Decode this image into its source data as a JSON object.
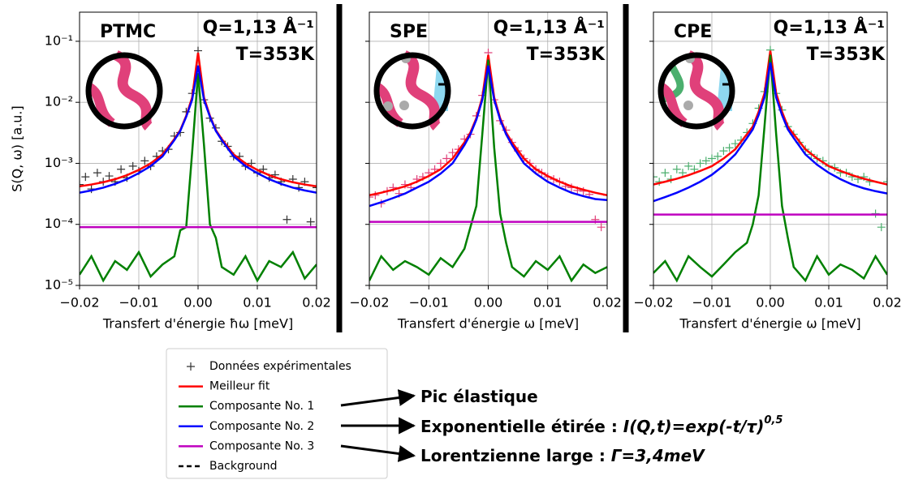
{
  "chart_data": [
    {
      "type": "line",
      "log_y": true,
      "grid": true,
      "sample": "PTMC",
      "sample_color": "#444444",
      "q_label": "Q=1,13 Å⁻¹",
      "t_label": "T=353K",
      "t_color": "#e0604a",
      "xlabel": "Transfert d'énergie ħω [meV]",
      "ylabel": "S(Q, ω) [a.u.]",
      "xlim": [
        -0.02,
        0.02
      ],
      "ylim": [
        1e-05,
        0.3
      ],
      "xticks": [
        {
          "value": -0.02,
          "label": "−0.02"
        },
        {
          "value": -0.01,
          "label": "−0.01"
        },
        {
          "value": 0,
          "label": "0.00"
        },
        0.01,
        0.02
      ],
      "yticks": [
        {
          "value": 1e-05,
          "label": "10⁻⁵"
        },
        {
          "value": 0.0001,
          "label": "10⁻⁴"
        },
        {
          "value": 0.001,
          "label": "10⁻³"
        },
        {
          "value": 0.01,
          "label": "10⁻²"
        },
        {
          "value": 0.1,
          "label": "10⁻¹"
        }
      ],
      "x": [
        -0.02,
        -0.018,
        -0.016,
        -0.014,
        -0.012,
        -0.01,
        -0.008,
        -0.006,
        -0.004,
        -0.003,
        -0.002,
        -0.001,
        0,
        0.001,
        0.002,
        0.003,
        0.004,
        0.006,
        0.008,
        0.01,
        0.012,
        0.014,
        0.016,
        0.018,
        0.02
      ],
      "series": [
        {
          "color": "#333333",
          "style": "+",
          "x": [
            -0.02,
            -0.019,
            -0.018,
            -0.017,
            -0.016,
            -0.015,
            -0.014,
            -0.013,
            -0.012,
            -0.011,
            -0.01,
            -0.009,
            -0.008,
            -0.007,
            -0.006,
            -0.005,
            -0.004,
            -0.003,
            -0.002,
            -0.001,
            0,
            0.001,
            0.002,
            0.003,
            0.004,
            0.005,
            0.006,
            0.007,
            0.008,
            0.009,
            0.01,
            0.011,
            0.012,
            0.013,
            0.014,
            0.015,
            0.016,
            0.017,
            0.018,
            0.019,
            0.02
          ],
          "values": [
            0.00045,
            0.0006,
            0.00038,
            0.0007,
            0.0005,
            0.00062,
            0.0005,
            0.0008,
            0.00058,
            0.0009,
            0.00075,
            0.0011,
            0.0009,
            0.0013,
            0.0016,
            0.0017,
            0.0028,
            0.0032,
            0.007,
            0.014,
            0.07,
            0.011,
            0.0055,
            0.0038,
            0.0023,
            0.0019,
            0.0013,
            0.0013,
            0.0009,
            0.001,
            0.0007,
            0.0008,
            0.00058,
            0.00065,
            0.0005,
            0.00012,
            0.00055,
            0.0004,
            0.0005,
            0.00011,
            0.0004
          ]
        },
        {
          "color": "#ff0000",
          "style": "solid",
          "values": [
            0.00042,
            0.00045,
            0.00049,
            0.00055,
            0.00064,
            0.00078,
            0.001,
            0.0014,
            0.0025,
            0.0035,
            0.006,
            0.012,
            0.065,
            0.012,
            0.006,
            0.0035,
            0.0025,
            0.0014,
            0.001,
            0.00078,
            0.00064,
            0.00055,
            0.00049,
            0.00045,
            0.00042
          ]
        },
        {
          "color": "#008000",
          "style": "solid",
          "values": [
            1.5e-05,
            3e-05,
            1.2e-05,
            2.5e-05,
            1.8e-05,
            3.5e-05,
            1.4e-05,
            2.2e-05,
            3e-05,
            8e-05,
            9e-05,
            0.0015,
            0.03,
            0.002,
            0.0001,
            6e-05,
            2e-05,
            1.5e-05,
            3e-05,
            1.2e-05,
            2.5e-05,
            2e-05,
            3.5e-05,
            1.3e-05,
            2.2e-05
          ]
        },
        {
          "color": "#0000ff",
          "style": "solid",
          "values": [
            0.00033,
            0.00036,
            0.0004,
            0.00046,
            0.00055,
            0.00069,
            0.0009,
            0.0013,
            0.0024,
            0.0034,
            0.0058,
            0.011,
            0.04,
            0.011,
            0.0058,
            0.0034,
            0.0024,
            0.0013,
            0.0009,
            0.00069,
            0.00055,
            0.00046,
            0.0004,
            0.00036,
            0.00033
          ]
        },
        {
          "color": "#bf00bf",
          "style": "solid",
          "x": [
            -0.02,
            0.02
          ],
          "values": [
            9e-05,
            9e-05
          ]
        }
      ]
    },
    {
      "type": "line",
      "log_y": true,
      "grid": true,
      "sample": "SPE",
      "sample_color": "#e0407a",
      "q_label": "Q=1,13 Å⁻¹",
      "t_label": "T=353K",
      "t_color": "#e0604a",
      "xlabel": "Transfert d'énergie ω [meV]",
      "xlim": [
        -0.02,
        0.02
      ],
      "ylim": [
        1e-05,
        0.3
      ],
      "xticks": [
        {
          "value": -0.02,
          "label": "−0.02"
        },
        {
          "value": -0.01,
          "label": "−0.01"
        },
        {
          "value": 0,
          "label": "0.00"
        },
        0.01,
        0.02
      ],
      "yticks": [
        1e-05,
        0.0001,
        0.001,
        0.01,
        0.1
      ],
      "x": [
        -0.02,
        -0.018,
        -0.016,
        -0.014,
        -0.012,
        -0.01,
        -0.008,
        -0.006,
        -0.004,
        -0.003,
        -0.002,
        -0.001,
        0,
        0.001,
        0.002,
        0.003,
        0.004,
        0.006,
        0.008,
        0.01,
        0.012,
        0.014,
        0.016,
        0.018,
        0.02
      ],
      "series": [
        {
          "color": "#e0407a",
          "style": "+",
          "x": [
            -0.02,
            -0.019,
            -0.018,
            -0.017,
            -0.016,
            -0.015,
            -0.014,
            -0.013,
            -0.012,
            -0.011,
            -0.01,
            -0.009,
            -0.008,
            -0.007,
            -0.006,
            -0.005,
            -0.004,
            -0.003,
            -0.002,
            -0.001,
            0,
            0.001,
            0.002,
            0.003,
            0.004,
            0.005,
            0.006,
            0.007,
            0.008,
            0.009,
            0.01,
            0.011,
            0.012,
            0.013,
            0.014,
            0.015,
            0.016,
            0.017,
            0.018,
            0.019,
            0.02
          ],
          "values": [
            0.00028,
            0.0003,
            0.00022,
            0.00035,
            0.0004,
            0.00032,
            0.00045,
            0.0004,
            0.00055,
            0.0006,
            0.0007,
            0.0008,
            0.001,
            0.0012,
            0.0015,
            0.0017,
            0.0025,
            0.003,
            0.006,
            0.013,
            0.065,
            0.011,
            0.005,
            0.0035,
            0.0022,
            0.0016,
            0.0012,
            0.001,
            0.0008,
            0.0007,
            0.0006,
            0.00055,
            0.0005,
            0.00042,
            0.0004,
            0.00036,
            0.00035,
            0.00031,
            0.00012,
            9e-05,
            0.0003
          ]
        },
        {
          "color": "#ff0000",
          "style": "solid",
          "values": [
            0.0003,
            0.00033,
            0.00037,
            0.00042,
            0.0005,
            0.00062,
            0.0008,
            0.0012,
            0.0022,
            0.0032,
            0.0055,
            0.012,
            0.06,
            0.012,
            0.0055,
            0.0032,
            0.0022,
            0.0012,
            0.0008,
            0.00062,
            0.0005,
            0.00042,
            0.00037,
            0.00033,
            0.0003
          ]
        },
        {
          "color": "#008000",
          "style": "solid",
          "values": [
            1.2e-05,
            3e-05,
            1.8e-05,
            2.5e-05,
            2e-05,
            1.5e-05,
            2.8e-05,
            2e-05,
            4e-05,
            9e-05,
            0.0002,
            0.003,
            0.05,
            0.0018,
            0.00015,
            5e-05,
            2e-05,
            1.4e-05,
            2.5e-05,
            1.8e-05,
            3e-05,
            1.2e-05,
            2.2e-05,
            1.6e-05,
            2e-05
          ]
        },
        {
          "color": "#0000ff",
          "style": "solid",
          "values": [
            0.0002,
            0.00023,
            0.00027,
            0.00032,
            0.0004,
            0.0005,
            0.00068,
            0.001,
            0.002,
            0.003,
            0.0052,
            0.011,
            0.04,
            0.011,
            0.0052,
            0.003,
            0.002,
            0.001,
            0.00068,
            0.0005,
            0.0004,
            0.00033,
            0.00029,
            0.00026,
            0.00025
          ]
        },
        {
          "color": "#bf00bf",
          "style": "solid",
          "x": [
            -0.02,
            0.02
          ],
          "values": [
            0.00011,
            0.00011
          ]
        }
      ]
    },
    {
      "type": "line",
      "log_y": true,
      "grid": true,
      "sample": "CPE",
      "sample_color": "#3cb371",
      "q_label": "Q=1,13 Å⁻¹",
      "t_label": "T=353K",
      "t_color": "#e0604a",
      "xlabel": "Transfert d'énergie ω [meV]",
      "xlim": [
        -0.02,
        0.02
      ],
      "ylim": [
        1e-05,
        0.3
      ],
      "xticks": [
        {
          "value": -0.02,
          "label": "−0.02"
        },
        {
          "value": -0.01,
          "label": "−0.01"
        },
        {
          "value": 0,
          "label": "0.00"
        },
        0.01,
        0.02
      ],
      "yticks": [
        1e-05,
        0.0001,
        0.001,
        0.01,
        0.1
      ],
      "x": [
        -0.02,
        -0.018,
        -0.016,
        -0.014,
        -0.012,
        -0.01,
        -0.008,
        -0.006,
        -0.004,
        -0.003,
        -0.002,
        -0.001,
        0,
        0.001,
        0.002,
        0.003,
        0.004,
        0.006,
        0.008,
        0.01,
        0.012,
        0.014,
        0.016,
        0.018,
        0.02
      ],
      "series": [
        {
          "color": "#4caf6e",
          "style": "+",
          "x": [
            -0.02,
            -0.019,
            -0.018,
            -0.017,
            -0.016,
            -0.015,
            -0.014,
            -0.013,
            -0.012,
            -0.011,
            -0.01,
            -0.009,
            -0.008,
            -0.007,
            -0.006,
            -0.005,
            -0.004,
            -0.003,
            -0.002,
            -0.001,
            0,
            0.001,
            0.002,
            0.003,
            0.004,
            0.005,
            0.006,
            0.007,
            0.008,
            0.009,
            0.01,
            0.011,
            0.012,
            0.013,
            0.014,
            0.015,
            0.016,
            0.017,
            0.018,
            0.019,
            0.02
          ],
          "values": [
            0.0006,
            0.0005,
            0.0007,
            0.00055,
            0.0008,
            0.0007,
            0.0009,
            0.0008,
            0.001,
            0.0011,
            0.0012,
            0.0013,
            0.0016,
            0.0018,
            0.0021,
            0.0024,
            0.0032,
            0.0045,
            0.008,
            0.015,
            0.072,
            0.014,
            0.0075,
            0.004,
            0.003,
            0.0022,
            0.0017,
            0.0014,
            0.0012,
            0.0011,
            0.0009,
            0.00085,
            0.0007,
            0.0007,
            0.0006,
            0.00055,
            0.0006,
            0.0005,
            0.00015,
            9e-05,
            0.0005
          ]
        },
        {
          "color": "#ff0000",
          "style": "solid",
          "values": [
            0.00045,
            0.0005,
            0.00056,
            0.00064,
            0.00075,
            0.0009,
            0.0012,
            0.0017,
            0.003,
            0.004,
            0.007,
            0.014,
            0.07,
            0.014,
            0.007,
            0.004,
            0.003,
            0.0017,
            0.0012,
            0.0009,
            0.00075,
            0.00064,
            0.00056,
            0.0005,
            0.00045
          ]
        },
        {
          "color": "#008000",
          "style": "solid",
          "values": [
            1.6e-05,
            2.5e-05,
            1.2e-05,
            3e-05,
            2e-05,
            1.4e-05,
            2.2e-05,
            3.5e-05,
            5e-05,
            0.0001,
            0.0003,
            0.004,
            0.06,
            0.003,
            0.0002,
            6e-05,
            2e-05,
            1.2e-05,
            3e-05,
            1.5e-05,
            2.2e-05,
            1.8e-05,
            1.3e-05,
            3e-05,
            1.5e-05
          ]
        },
        {
          "color": "#0000ff",
          "style": "solid",
          "values": [
            0.00024,
            0.00028,
            0.00033,
            0.0004,
            0.0005,
            0.00065,
            0.00092,
            0.0014,
            0.0026,
            0.0036,
            0.0062,
            0.012,
            0.045,
            0.012,
            0.0062,
            0.0036,
            0.0026,
            0.0014,
            0.00095,
            0.0007,
            0.00055,
            0.00045,
            0.00039,
            0.00035,
            0.00032
          ]
        },
        {
          "color": "#bf00bf",
          "style": "solid",
          "x": [
            -0.02,
            0.02
          ],
          "values": [
            0.000145,
            0.000145
          ]
        }
      ]
    }
  ],
  "legend": {
    "items": [
      {
        "label": "Données expérimentales",
        "color": "#333333",
        "style": "+"
      },
      {
        "label": "Meilleur fit",
        "color": "#ff0000",
        "style": "solid"
      },
      {
        "label": "Composante No. 1",
        "color": "#008000",
        "style": "solid"
      },
      {
        "label": "Composante No. 2",
        "color": "#0000ff",
        "style": "solid"
      },
      {
        "label": "Composante No. 3",
        "color": "#bf00bf",
        "style": "solid"
      },
      {
        "label": "Background",
        "color": "#000000",
        "style": "dashed"
      }
    ]
  },
  "annotations": [
    {
      "text": "Pic élastique",
      "color": "#008000"
    },
    {
      "text": "Exponentielle étirée : ",
      "formula": "I(Q,t)=exp(-t/τ)",
      "exponent": "0,5",
      "color": "#0000ff"
    },
    {
      "text": "Lorentzienne large : ",
      "formula": "Γ=3,4meV",
      "color": "#bf00bf"
    }
  ]
}
